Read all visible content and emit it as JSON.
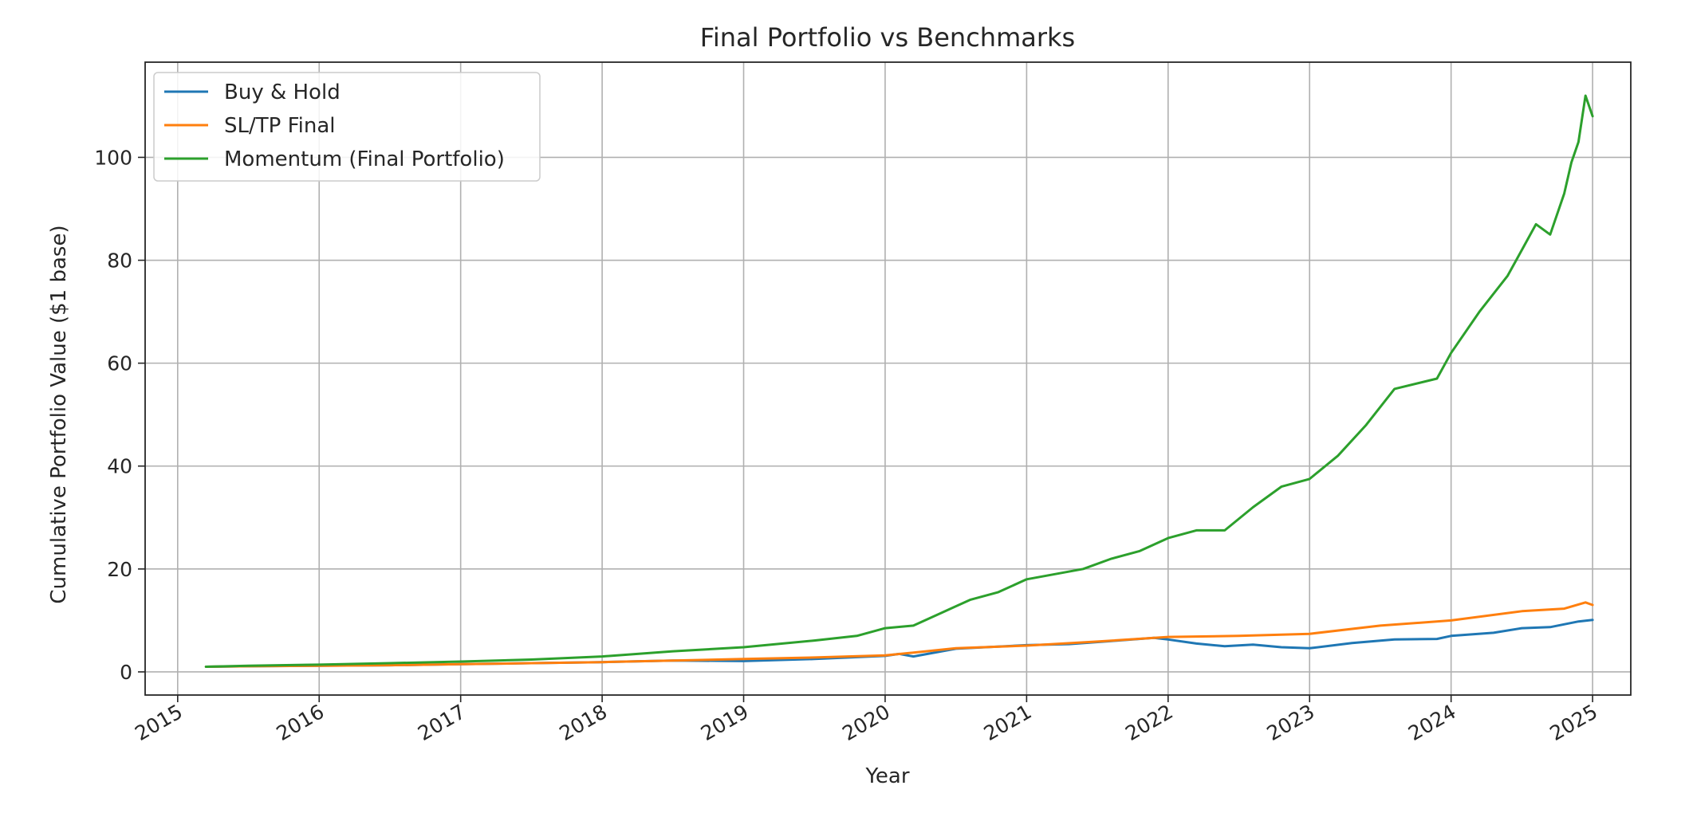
{
  "chart_data": {
    "type": "line",
    "title": "Final Portfolio vs Benchmarks",
    "xlabel": "Year",
    "ylabel": "Cumulative Portfolio Value ($1 base)",
    "xlim": [
      2014.77,
      2025.27
    ],
    "ylim": [
      -4.5,
      118.5
    ],
    "x_ticks": [
      2015,
      2016,
      2017,
      2018,
      2019,
      2020,
      2021,
      2022,
      2023,
      2024,
      2025
    ],
    "x_tick_labels": [
      "2015",
      "2016",
      "2017",
      "2018",
      "2019",
      "2020",
      "2021",
      "2022",
      "2023",
      "2024",
      "2025"
    ],
    "y_ticks": [
      0,
      20,
      40,
      60,
      80,
      100
    ],
    "y_tick_labels": [
      "0",
      "20",
      "40",
      "60",
      "80",
      "100"
    ],
    "grid": true,
    "legend_position": "upper-left",
    "series": [
      {
        "name": "Buy & Hold",
        "color": "#1f77b4",
        "x": [
          2015.2,
          2015.5,
          2016.0,
          2016.5,
          2017.0,
          2017.5,
          2018.0,
          2018.5,
          2019.0,
          2019.5,
          2020.0,
          2020.1,
          2020.2,
          2020.5,
          2021.0,
          2021.3,
          2021.6,
          2021.9,
          2022.0,
          2022.2,
          2022.4,
          2022.6,
          2022.8,
          2023.0,
          2023.3,
          2023.6,
          2023.9,
          2024.0,
          2024.3,
          2024.5,
          2024.7,
          2024.9,
          2025.0
        ],
        "y": [
          1.0,
          1.1,
          1.2,
          1.3,
          1.5,
          1.7,
          1.9,
          2.2,
          2.1,
          2.5,
          3.1,
          3.5,
          3.0,
          4.5,
          5.2,
          5.4,
          6.0,
          6.6,
          6.3,
          5.5,
          5.0,
          5.3,
          4.8,
          4.6,
          5.6,
          6.3,
          6.4,
          7.0,
          7.6,
          8.5,
          8.7,
          9.8,
          10.1
        ]
      },
      {
        "name": "SL/TP Final",
        "color": "#ff7f0e",
        "x": [
          2015.2,
          2015.5,
          2016.0,
          2016.5,
          2017.0,
          2017.5,
          2018.0,
          2018.5,
          2019.0,
          2019.5,
          2020.0,
          2020.5,
          2021.0,
          2021.5,
          2022.0,
          2022.5,
          2023.0,
          2023.5,
          2024.0,
          2024.5,
          2024.8,
          2024.95,
          2025.0
        ],
        "y": [
          1.0,
          1.1,
          1.2,
          1.3,
          1.5,
          1.7,
          1.9,
          2.2,
          2.5,
          2.8,
          3.2,
          4.6,
          5.1,
          5.9,
          6.8,
          7.0,
          7.4,
          9.0,
          10.0,
          11.8,
          12.3,
          13.5,
          13.0
        ]
      },
      {
        "name": "Momentum (Final Portfolio)",
        "color": "#2ca02c",
        "x": [
          2015.2,
          2015.5,
          2016.0,
          2016.5,
          2017.0,
          2017.5,
          2018.0,
          2018.5,
          2019.0,
          2019.5,
          2019.8,
          2020.0,
          2020.2,
          2020.4,
          2020.6,
          2020.8,
          2021.0,
          2021.2,
          2021.4,
          2021.6,
          2021.8,
          2022.0,
          2022.2,
          2022.4,
          2022.6,
          2022.8,
          2023.0,
          2023.2,
          2023.4,
          2023.6,
          2023.9,
          2024.0,
          2024.2,
          2024.4,
          2024.5,
          2024.6,
          2024.7,
          2024.8,
          2024.85,
          2024.9,
          2024.95,
          2025.0
        ],
        "y": [
          1.0,
          1.2,
          1.4,
          1.7,
          2.0,
          2.4,
          3.0,
          4.0,
          4.8,
          6.1,
          7.0,
          8.5,
          9.0,
          11.5,
          14.0,
          15.5,
          18.0,
          19.0,
          20.0,
          22.0,
          23.5,
          26.0,
          27.5,
          27.5,
          32.0,
          36.0,
          37.5,
          42.0,
          48.0,
          55.0,
          57.0,
          62.0,
          70.0,
          77.0,
          82.0,
          87.0,
          85.0,
          93.0,
          99.0,
          103.0,
          112.0,
          108.0
        ]
      }
    ]
  }
}
